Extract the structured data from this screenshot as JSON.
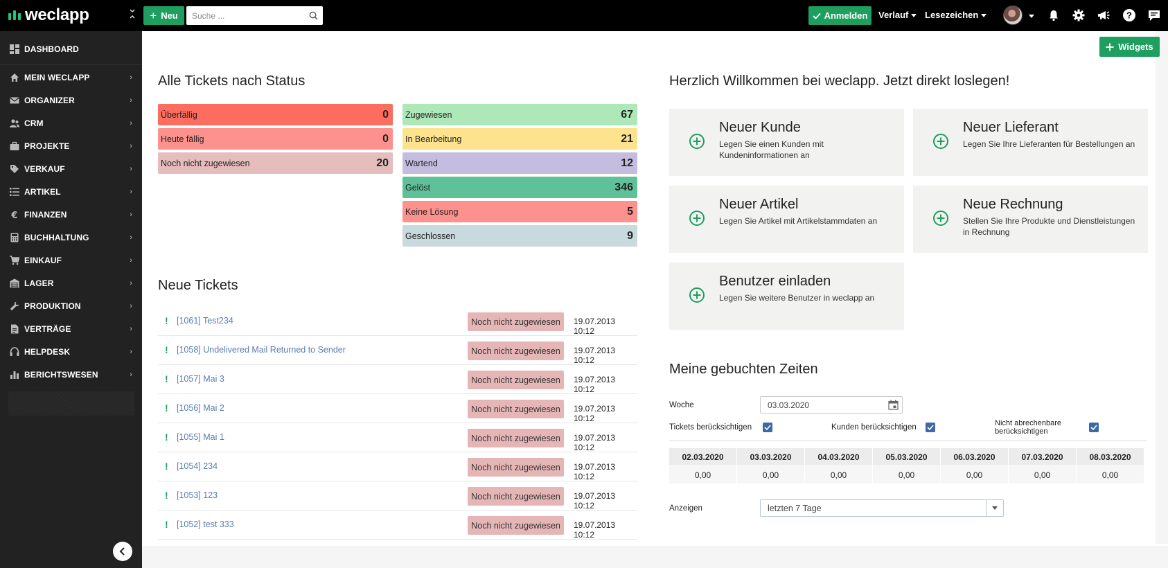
{
  "app": {
    "logo_text": "weclapp",
    "new_button_label": "Neu",
    "search_placeholder": "Suche ...",
    "anmelden_label": "Anmelden",
    "verlauf_label": "Verlauf",
    "lesezeichen_label": "Lesezeichen",
    "widgets_button_label": "Widgets"
  },
  "sidebar": {
    "dashboard_label": "DASHBOARD",
    "items": [
      {
        "label": "MEIN WECLAPP",
        "icon": "home-icon"
      },
      {
        "label": "ORGANIZER",
        "icon": "envelope-icon"
      },
      {
        "label": "CRM",
        "icon": "users-icon"
      },
      {
        "label": "PROJEKTE",
        "icon": "briefcase-icon"
      },
      {
        "label": "VERKAUF",
        "icon": "tag-icon"
      },
      {
        "label": "ARTIKEL",
        "icon": "list-icon"
      },
      {
        "label": "FINANZEN",
        "icon": "euro-icon"
      },
      {
        "label": "BUCHHALTUNG",
        "icon": "calculator-icon"
      },
      {
        "label": "EINKAUF",
        "icon": "cart-icon"
      },
      {
        "label": "LAGER",
        "icon": "warehouse-icon"
      },
      {
        "label": "PRODUKTION",
        "icon": "wrench-icon"
      },
      {
        "label": "VERTRÄGE",
        "icon": "file-icon"
      },
      {
        "label": "HELPDESK",
        "icon": "headset-icon"
      },
      {
        "label": "BERICHTSWESEN",
        "icon": "bar-chart-icon"
      }
    ]
  },
  "tickets_status": {
    "title": "Alle Tickets nach Status",
    "left": [
      {
        "label": "Überfällig",
        "count": "0",
        "color": "#fc6d60"
      },
      {
        "label": "Heute fällig",
        "count": "0",
        "color": "#fd918d"
      },
      {
        "label": "Noch nicht zugewiesen",
        "count": "20",
        "color": "#e5bdbd"
      }
    ],
    "right": [
      {
        "label": "Zugewiesen",
        "count": "67",
        "color": "#aee7b8"
      },
      {
        "label": "In Bearbeitung",
        "count": "21",
        "color": "#fee38f"
      },
      {
        "label": "Wartend",
        "count": "12",
        "color": "#c4bde0"
      },
      {
        "label": "Gelöst",
        "count": "346",
        "color": "#5fc19a"
      },
      {
        "label": "Keine Lösung",
        "count": "5",
        "color": "#fd918d"
      },
      {
        "label": "Geschlossen",
        "count": "9",
        "color": "#c9dadf"
      }
    ]
  },
  "new_tickets": {
    "title": "Neue Tickets",
    "rows": [
      {
        "link": "[1061] Test234",
        "status": "Noch nicht zugewiesen",
        "date": "19.07.2013 10:12"
      },
      {
        "link": "[1058] Undelivered Mail Returned to Sender",
        "status": "Noch nicht zugewiesen",
        "date": "19.07.2013 10:12"
      },
      {
        "link": "[1057] Mai 3",
        "status": "Noch nicht zugewiesen",
        "date": "19.07.2013 10:12"
      },
      {
        "link": "[1056] Mai 2",
        "status": "Noch nicht zugewiesen",
        "date": "19.07.2013 10:12"
      },
      {
        "link": "[1055] Mai 1",
        "status": "Noch nicht zugewiesen",
        "date": "19.07.2013 10:12"
      },
      {
        "link": "[1054] 234",
        "status": "Noch nicht zugewiesen",
        "date": "19.07.2013 10:12"
      },
      {
        "link": "[1053] 123",
        "status": "Noch nicht zugewiesen",
        "date": "19.07.2013 10:12"
      },
      {
        "link": "[1052] test 333",
        "status": "Noch nicht zugewiesen",
        "date": "19.07.2013 10:12"
      }
    ]
  },
  "welcome": {
    "title": "Herzlich Willkommen bei weclapp. Jetzt direkt loslegen!",
    "cards": [
      {
        "title": "Neuer Kunde",
        "desc": "Legen Sie einen Kunden mit Kundeninformationen an"
      },
      {
        "title": "Neuer Lieferant",
        "desc": "Legen Sie Ihre Lieferanten für Bestellungen an"
      },
      {
        "title": "Neuer Artikel",
        "desc": "Legen Sie Artikel mit Artikelstammdaten an"
      },
      {
        "title": "Neue Rechnung",
        "desc": "Stellen Sie Ihre Produkte und Dienstleistungen in Rechnung"
      },
      {
        "title": "Benutzer einladen",
        "desc": "Legen Sie weitere Benutzer in weclapp an"
      }
    ]
  },
  "times": {
    "title": "Meine gebuchten Zeiten",
    "woche_label": "Woche",
    "woche_value": "03.03.2020",
    "cb_tickets": "Tickets berücksichtigen",
    "cb_kunden": "Kunden berücksichtigen",
    "cb_nicht_line1": "Nicht abrechenbare",
    "cb_nicht_line2": "berücksichtigen",
    "days": [
      "02.03.2020",
      "03.03.2020",
      "04.03.2020",
      "05.03.2020",
      "06.03.2020",
      "07.03.2020",
      "08.03.2020"
    ],
    "values": [
      "0,00",
      "0,00",
      "0,00",
      "0,00",
      "0,00",
      "0,00",
      "0,00"
    ],
    "anzeigen_label": "Anzeigen",
    "anzeigen_value": "letzten 7 Tage"
  },
  "colors": {
    "brand_green": "#1e9e5f",
    "topbar": "#000000",
    "sidebar": "#222222",
    "link": "#5a7db0",
    "checkbox": "#3d6aa5"
  }
}
